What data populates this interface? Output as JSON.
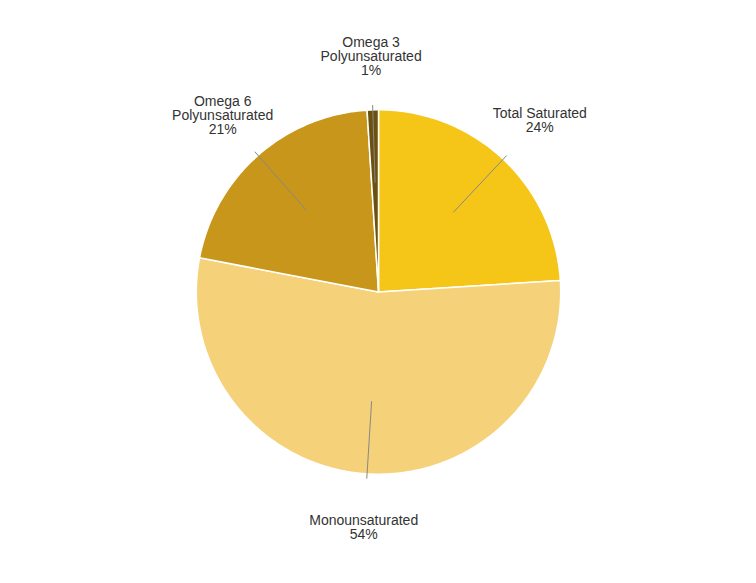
{
  "chart_data": {
    "type": "pie",
    "categories": [
      "Total Saturated",
      "Monounsaturated",
      "Omega 6\nPolyunsaturated",
      "Omega 3\nPolyunsaturated"
    ],
    "values": [
      24,
      54,
      21,
      1
    ],
    "value_labels": [
      "24%",
      "54%",
      "21%",
      "1%"
    ],
    "colors": [
      "#F5C518",
      "#F5D27A",
      "#C8961A",
      "#6B5010"
    ],
    "data_labels": true
  }
}
